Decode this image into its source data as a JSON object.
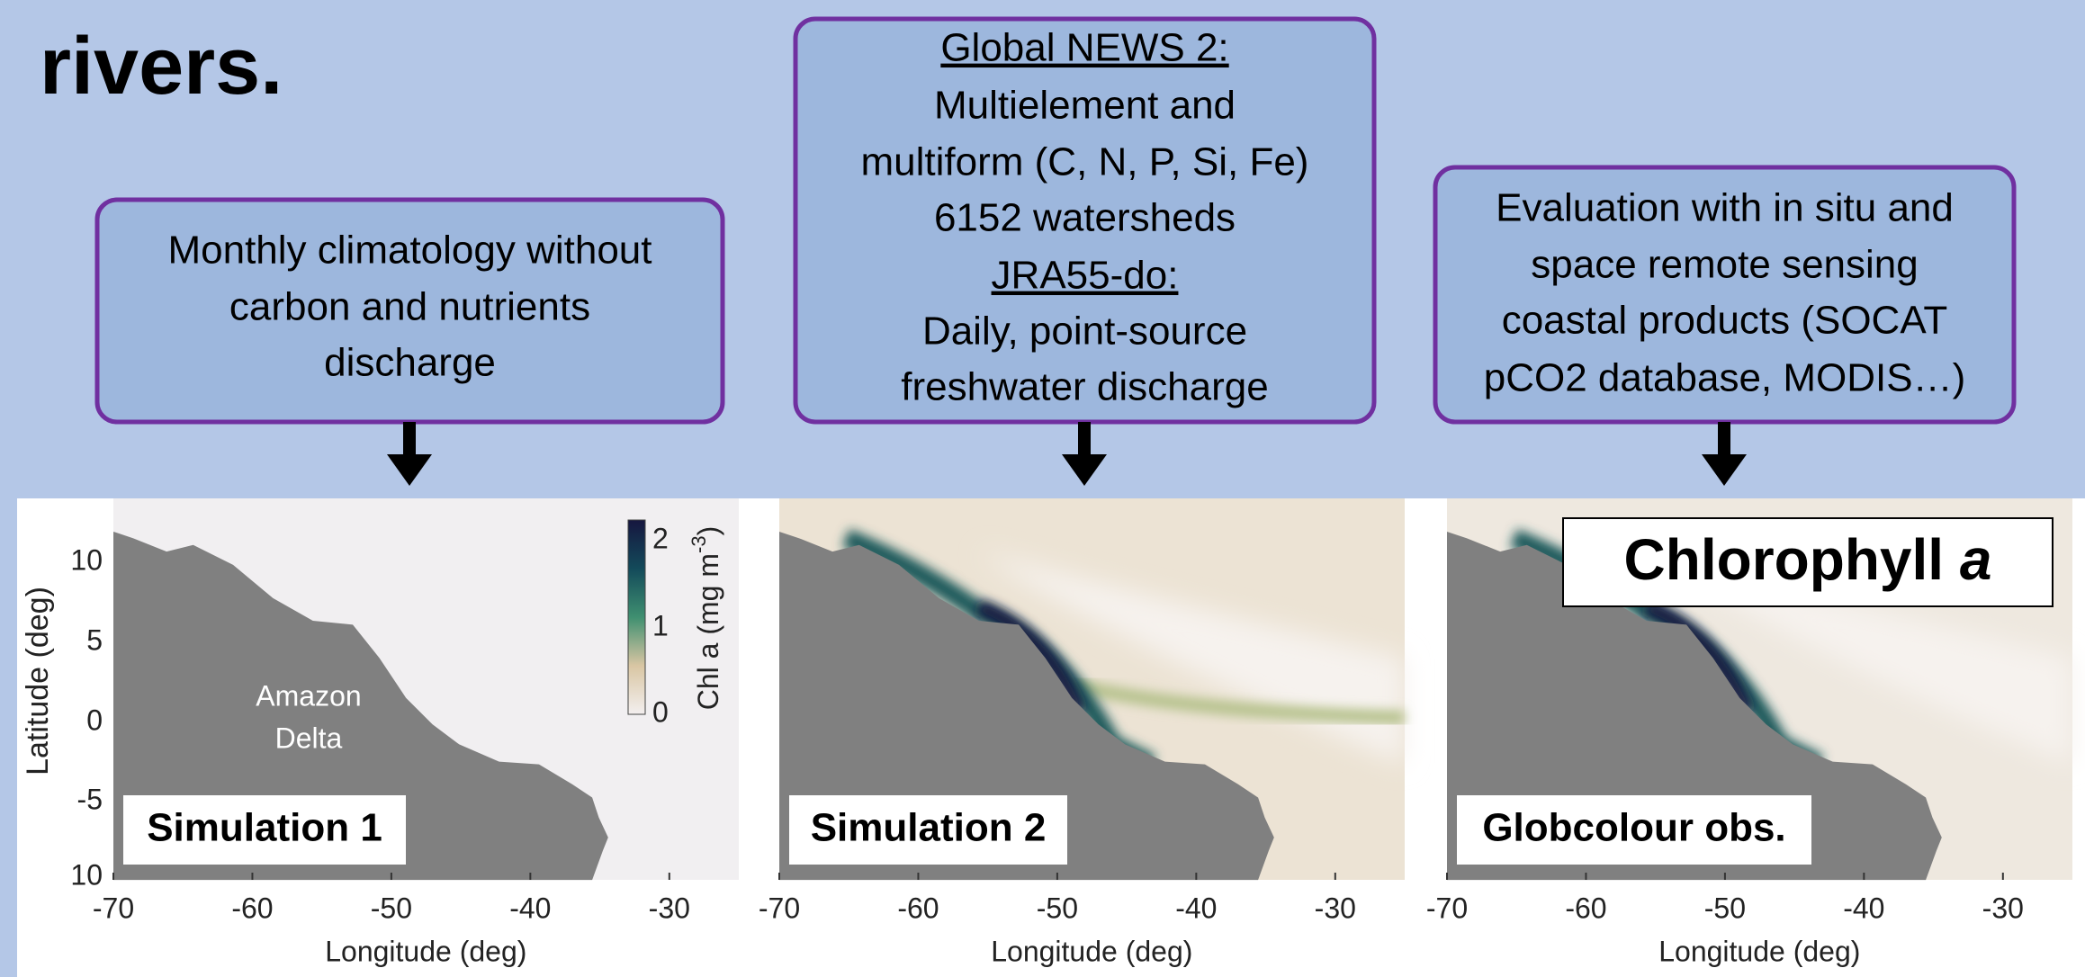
{
  "title": "rivers.",
  "boxes": [
    {
      "lines": [
        "Monthly climatology without",
        "carbon and nutrients",
        "discharge"
      ]
    },
    {
      "lines": [
        "Global NEWS 2:",
        "Multielement and",
        "multiform (C, N, P, Si, Fe)",
        "6152 watersheds",
        "JRA55-do:",
        "Daily, point-source",
        "freshwater discharge"
      ]
    },
    {
      "lines": [
        "Evaluation with in situ and",
        "space remote sensing",
        "coastal products (SOCAT",
        "pCO2 database, MODIS…)"
      ]
    }
  ],
  "panels": [
    {
      "label": "Simulation 1",
      "x_label": "Longitude (deg)",
      "x_ticks": [
        "-70",
        "-60",
        "-50",
        "-40",
        "-30"
      ]
    },
    {
      "label": "Simulation 2",
      "x_label": "Longitude (deg)",
      "x_ticks": [
        "-70",
        "-60",
        "-50",
        "-40",
        "-30"
      ]
    },
    {
      "label": "Globcolour obs.",
      "x_label": "Longitude (deg)",
      "x_ticks": [
        "-70",
        "-60",
        "-50",
        "-40",
        "-30"
      ]
    }
  ],
  "y_label": "Latitude (deg)",
  "y_ticks": [
    "10",
    "5",
    "0",
    "-5",
    "10"
  ],
  "map_annotation": [
    "Amazon",
    "Delta"
  ],
  "colorbar": {
    "label": "Chl a (mg m",
    "label_sup": "-3",
    "label_end": ")",
    "ticks": [
      "2",
      "1",
      "0"
    ]
  },
  "legend_title": {
    "text": "Chlorophyll ",
    "italic": "a"
  }
}
